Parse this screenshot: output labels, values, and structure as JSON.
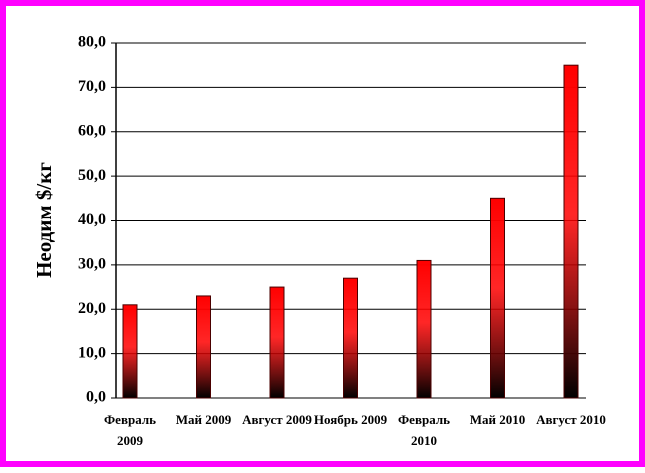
{
  "chart_data": {
    "type": "bar",
    "y_label": "Неодим $/кг",
    "categories": [
      "Февраль 2009",
      "Май 2009",
      "Август 2009",
      "Ноябрь 2009",
      "Февраль 2010",
      "Май 2010",
      "Август 2010"
    ],
    "values": [
      21,
      23,
      25,
      27,
      31,
      45,
      75
    ],
    "color": "#ff0000",
    "ylim": [
      0,
      80
    ],
    "yticks": [
      {
        "value": 0,
        "label": "0,0"
      },
      {
        "value": 10,
        "label": "10,0"
      },
      {
        "value": 20,
        "label": "20,0"
      },
      {
        "value": 30,
        "label": "30,0"
      },
      {
        "value": 40,
        "label": "40,0"
      },
      {
        "value": 50,
        "label": "50,0"
      },
      {
        "value": 60,
        "label": "60,0"
      },
      {
        "value": 70,
        "label": "70,0"
      },
      {
        "value": 80,
        "label": "80,0"
      }
    ],
    "grid": true
  }
}
